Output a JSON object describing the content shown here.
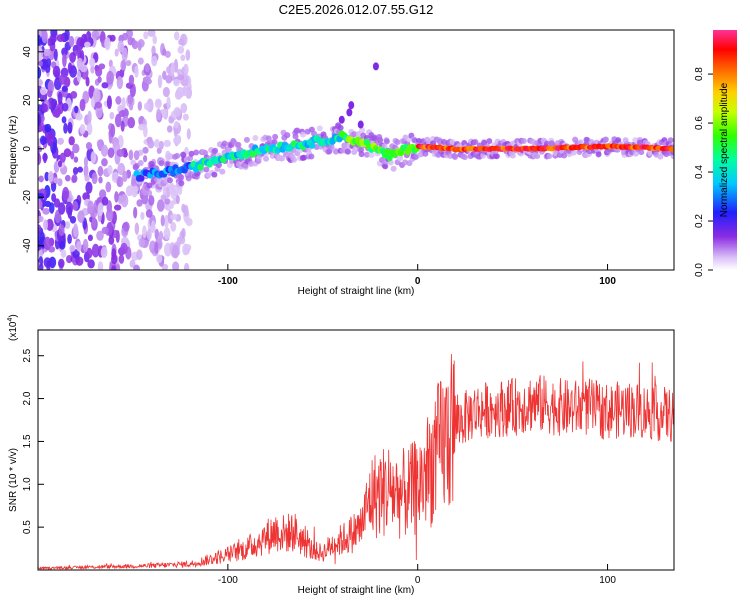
{
  "chart_data": [
    {
      "type": "heatmap",
      "title": "C2E5.2026.012.07.55.G12",
      "xlabel": "Height of straight line (km)",
      "ylabel": "Frequency (Hz)",
      "xlim": [
        -200,
        135
      ],
      "ylim": [
        -50,
        49
      ],
      "x_ticks": [
        "-100",
        "0",
        "100"
      ],
      "y_ticks": [
        "40",
        "20",
        "0",
        "-20",
        "-40"
      ],
      "colorbar": {
        "label": "Normalized spectral amplitude",
        "range": [
          0.0,
          0.98
        ],
        "ticks": [
          "0.0",
          "0.2",
          "0.4",
          "0.6",
          "0.8"
        ]
      },
      "ridge": [
        [
          -145,
          -11
        ],
        [
          -120,
          -8
        ],
        [
          -100,
          -3
        ],
        [
          -80,
          0
        ],
        [
          -60,
          2
        ],
        [
          -40,
          5
        ],
        [
          -30,
          3
        ],
        [
          -20,
          -1
        ],
        [
          -15,
          -3
        ],
        [
          -5,
          0
        ],
        [
          0,
          1
        ],
        [
          20,
          0
        ],
        [
          60,
          0
        ],
        [
          100,
          1
        ],
        [
          135,
          0
        ]
      ]
    },
    {
      "type": "line",
      "xlabel": "Height of straight line (km)",
      "ylabel": "SNR (10 * v/v)",
      "y_scale_label": "(x10",
      "y_scale_exponent": "4",
      "xlim": [
        -200,
        135
      ],
      "ylim": [
        0,
        2.8
      ],
      "x_ticks": [
        "-100",
        "0",
        "100"
      ],
      "y_ticks": [
        "0.5",
        "1.0",
        "1.5",
        "2.0",
        "2.5"
      ],
      "color": "#ee3333",
      "series": [
        {
          "name": "SNR",
          "x": [
            -200,
            -180,
            -160,
            -140,
            -120,
            -110,
            -100,
            -90,
            -80,
            -75,
            -70,
            -65,
            -60,
            -55,
            -50,
            -45,
            -40,
            -35,
            -30,
            -25,
            -20,
            -15,
            -10,
            -5,
            0,
            5,
            10,
            20,
            30,
            40,
            50,
            60,
            70,
            80,
            90,
            100,
            110,
            120,
            135
          ],
          "values": [
            0.02,
            0.03,
            0.04,
            0.05,
            0.07,
            0.12,
            0.18,
            0.25,
            0.38,
            0.45,
            0.42,
            0.45,
            0.32,
            0.22,
            0.2,
            0.3,
            0.35,
            0.42,
            0.5,
            0.85,
            0.9,
            0.95,
            0.88,
            0.9,
            0.98,
            1.15,
            1.35,
            1.7,
            1.85,
            1.88,
            1.9,
            1.95,
            1.92,
            1.88,
            1.9,
            1.85,
            1.88,
            1.85,
            1.8
          ]
        }
      ]
    }
  ]
}
